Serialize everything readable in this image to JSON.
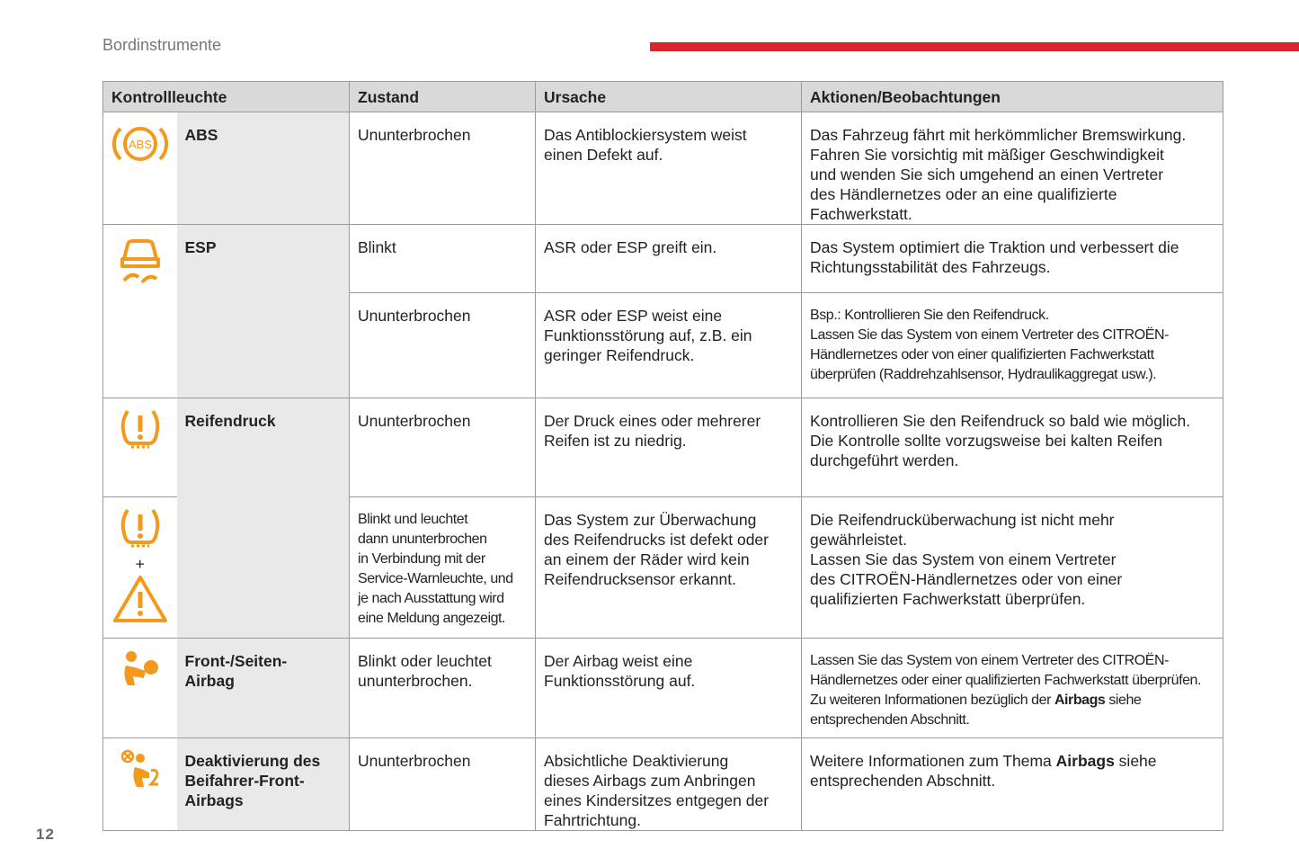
{
  "header": {
    "section": "Bordinstrumente",
    "page_number": "12"
  },
  "table": {
    "columns": [
      "Kontrollleuchte",
      "Zustand",
      "Ursache",
      "Aktionen/Beobachtungen"
    ],
    "rows": [
      {
        "icon_text": "ABS",
        "name": [
          "ABS"
        ],
        "entries": [
          {
            "state": [
              "Ununterbrochen"
            ],
            "cause": [
              "Das Antiblockiersystem weist",
              "einen Defekt auf."
            ],
            "action": [
              "Das Fahrzeug fährt mit herkömmlicher Bremswirkung.",
              "Fahren Sie vorsichtig mit mäßiger Geschwindigkeit",
              "und wenden Sie sich umgehend an einen Vertreter",
              "des Händlernetzes oder an eine qualifizierte",
              "Fachwerkstatt."
            ]
          }
        ]
      },
      {
        "name": [
          "ESP"
        ],
        "entries": [
          {
            "state": [
              "Blinkt"
            ],
            "cause": [
              "ASR oder ESP greift ein."
            ],
            "action": [
              "Das System optimiert die Traktion und verbessert die",
              "Richtungsstabilität des Fahrzeugs."
            ]
          },
          {
            "state": [
              "Ununterbrochen"
            ],
            "cause": [
              "ASR oder ESP weist eine",
              "Funktionsstörung auf, z.B. ein",
              "geringer Reifendruck."
            ],
            "action": [
              "Bsp.: Kontrollieren Sie den Reifendruck.",
              "Lassen Sie das System von einem Vertreter des CITROËN-",
              "Händlernetzes oder von einer qualifizierten Fachwerkstatt",
              "überprüfen (Raddrehzahlsensor, Hydraulikaggregat usw.)."
            ]
          }
        ]
      },
      {
        "name": [
          "Reifendruck"
        ],
        "entries": [
          {
            "state": [
              "Ununterbrochen"
            ],
            "cause": [
              "Der Druck eines oder mehrerer",
              "Reifen ist zu niedrig."
            ],
            "action": [
              "Kontrollieren Sie den Reifendruck so bald wie möglich.",
              "Die Kontrolle sollte vorzugsweise bei kalten Reifen",
              "durchgeführt werden."
            ]
          },
          {
            "icon_plus": "+",
            "state": [
              "Blinkt und leuchtet",
              "dann ununterbrochen",
              "in Verbindung mit der",
              "Service-Warnleuchte, und",
              "je nach Ausstattung wird",
              "eine Meldung angezeigt."
            ],
            "cause": [
              "Das System zur Überwachung",
              "des Reifendrucks ist defekt oder",
              "an einem der Räder wird kein",
              "Reifendrucksensor erkannt."
            ],
            "action": [
              "Die Reifendrucküberwachung ist nicht mehr",
              "gewährleistet.",
              "Lassen Sie das System von einem Vertreter",
              "des CITROËN-Händlernetzes oder von einer",
              "qualifizierten Fachwerkstatt überprüfen."
            ]
          }
        ]
      },
      {
        "name": [
          "Front-/Seiten-",
          "Airbag"
        ],
        "entries": [
          {
            "state": [
              "Blinkt oder leuchtet",
              "ununterbrochen."
            ],
            "cause": [
              "Der Airbag weist eine",
              "Funktionsstörung auf."
            ],
            "action": [
              "Lassen Sie das System von einem Vertreter des CITROËN-",
              "Händlernetzes oder einer qualifizierten Fachwerkstatt überprüfen.",
              [
                {
                  "text": "Zu weiteren Informationen bezüglich der "
                },
                {
                  "text": "Airbags",
                  "bold": true
                },
                {
                  "text": " siehe"
                }
              ],
              "entsprechenden Abschnitt."
            ]
          }
        ]
      },
      {
        "name": [
          "Deaktivierung des",
          "Beifahrer-Front-",
          "Airbags"
        ],
        "entries": [
          {
            "state": [
              "Ununterbrochen"
            ],
            "cause": [
              "Absichtliche Deaktivierung",
              "dieses Airbags zum Anbringen",
              "eines Kindersitzes entgegen der",
              "Fahrtrichtung."
            ],
            "action": [
              [
                {
                  "text": "Weitere Informationen zum Thema "
                },
                {
                  "text": "Airbags",
                  "bold": true
                },
                {
                  "text": " siehe"
                }
              ],
              "entsprechenden Abschnitt."
            ]
          }
        ]
      }
    ]
  }
}
